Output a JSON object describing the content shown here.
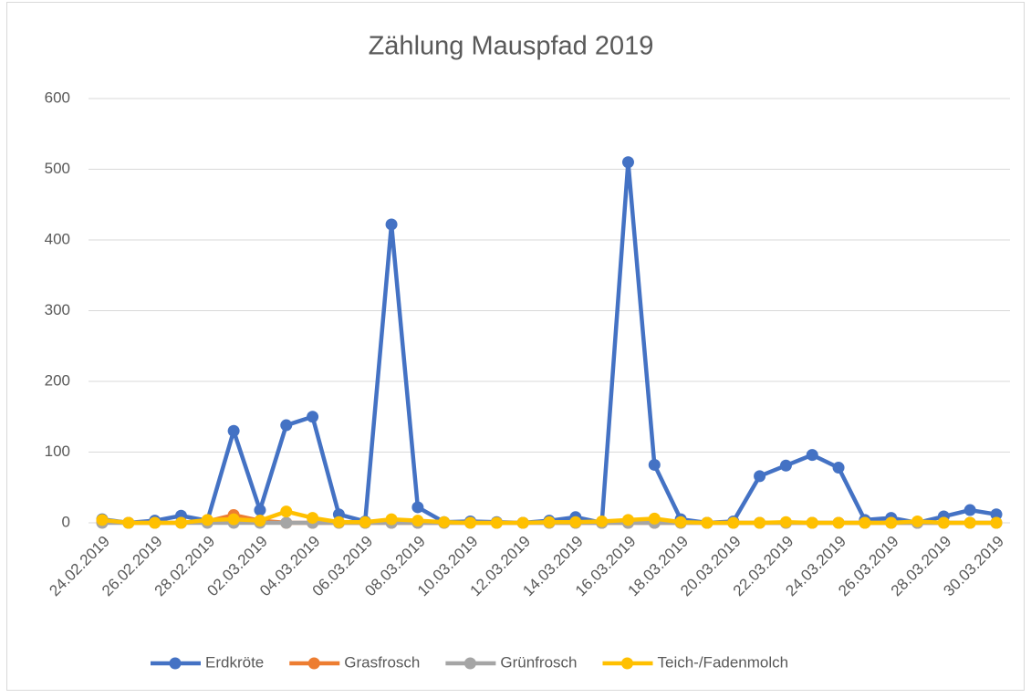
{
  "chart_data": {
    "type": "line",
    "title": "Zählung Mauspfad 2019",
    "categories": [
      "24.02.2019",
      null,
      "26.02.2019",
      null,
      "28.02.2019",
      null,
      "02.03.2019",
      null,
      "04.03.2019",
      null,
      "06.03.2019",
      null,
      "08.03.2019",
      null,
      "10.03.2019",
      null,
      "12.03.2019",
      null,
      "14.03.2019",
      null,
      "16.03.2019",
      null,
      "18.03.2019",
      null,
      "20.03.2019",
      null,
      "22.03.2019",
      null,
      "24.03.2019",
      null,
      "26.03.2019",
      null,
      "28.03.2019",
      null,
      "30.03.2019"
    ],
    "series": [
      {
        "name": "Erdkröte",
        "color": "#4472c4",
        "values": [
          5,
          0,
          3,
          10,
          3,
          130,
          18,
          138,
          150,
          12,
          2,
          422,
          22,
          1,
          2,
          1,
          0,
          3,
          8,
          0,
          510,
          82,
          5,
          0,
          2,
          66,
          81,
          96,
          78,
          4,
          7,
          0,
          9,
          18,
          12
        ]
      },
      {
        "name": "Grasfrosch",
        "color": "#ed7d31",
        "values": [
          2,
          0,
          0,
          0,
          2,
          11,
          3,
          0,
          0,
          0,
          0,
          0,
          0,
          0,
          0,
          0,
          0,
          0,
          0,
          0,
          0,
          0,
          0,
          0,
          0,
          0,
          0,
          0,
          0,
          0,
          0,
          0,
          0,
          0,
          0
        ]
      },
      {
        "name": "Grünfrosch",
        "color": "#a5a5a5",
        "values": [
          0,
          0,
          0,
          0,
          0,
          0,
          0,
          0,
          0,
          0,
          0,
          0,
          0,
          0,
          0,
          0,
          0,
          0,
          0,
          0,
          0,
          0,
          0,
          0,
          0,
          0,
          0,
          0,
          0,
          0,
          0,
          0,
          0,
          0,
          0
        ]
      },
      {
        "name": "Teich-/Fadenmolch",
        "color": "#ffc000",
        "values": [
          4,
          0,
          0,
          0,
          4,
          5,
          3,
          16,
          7,
          1,
          1,
          5,
          3,
          1,
          0,
          0,
          0,
          1,
          1,
          2,
          4,
          6,
          1,
          0,
          0,
          0,
          1,
          0,
          0,
          0,
          0,
          2,
          0,
          0,
          0
        ]
      }
    ],
    "ylim": [
      0,
      600
    ],
    "yticks": [
      0,
      100,
      200,
      300,
      400,
      500,
      600
    ],
    "grid": true,
    "legend": "bottom"
  }
}
